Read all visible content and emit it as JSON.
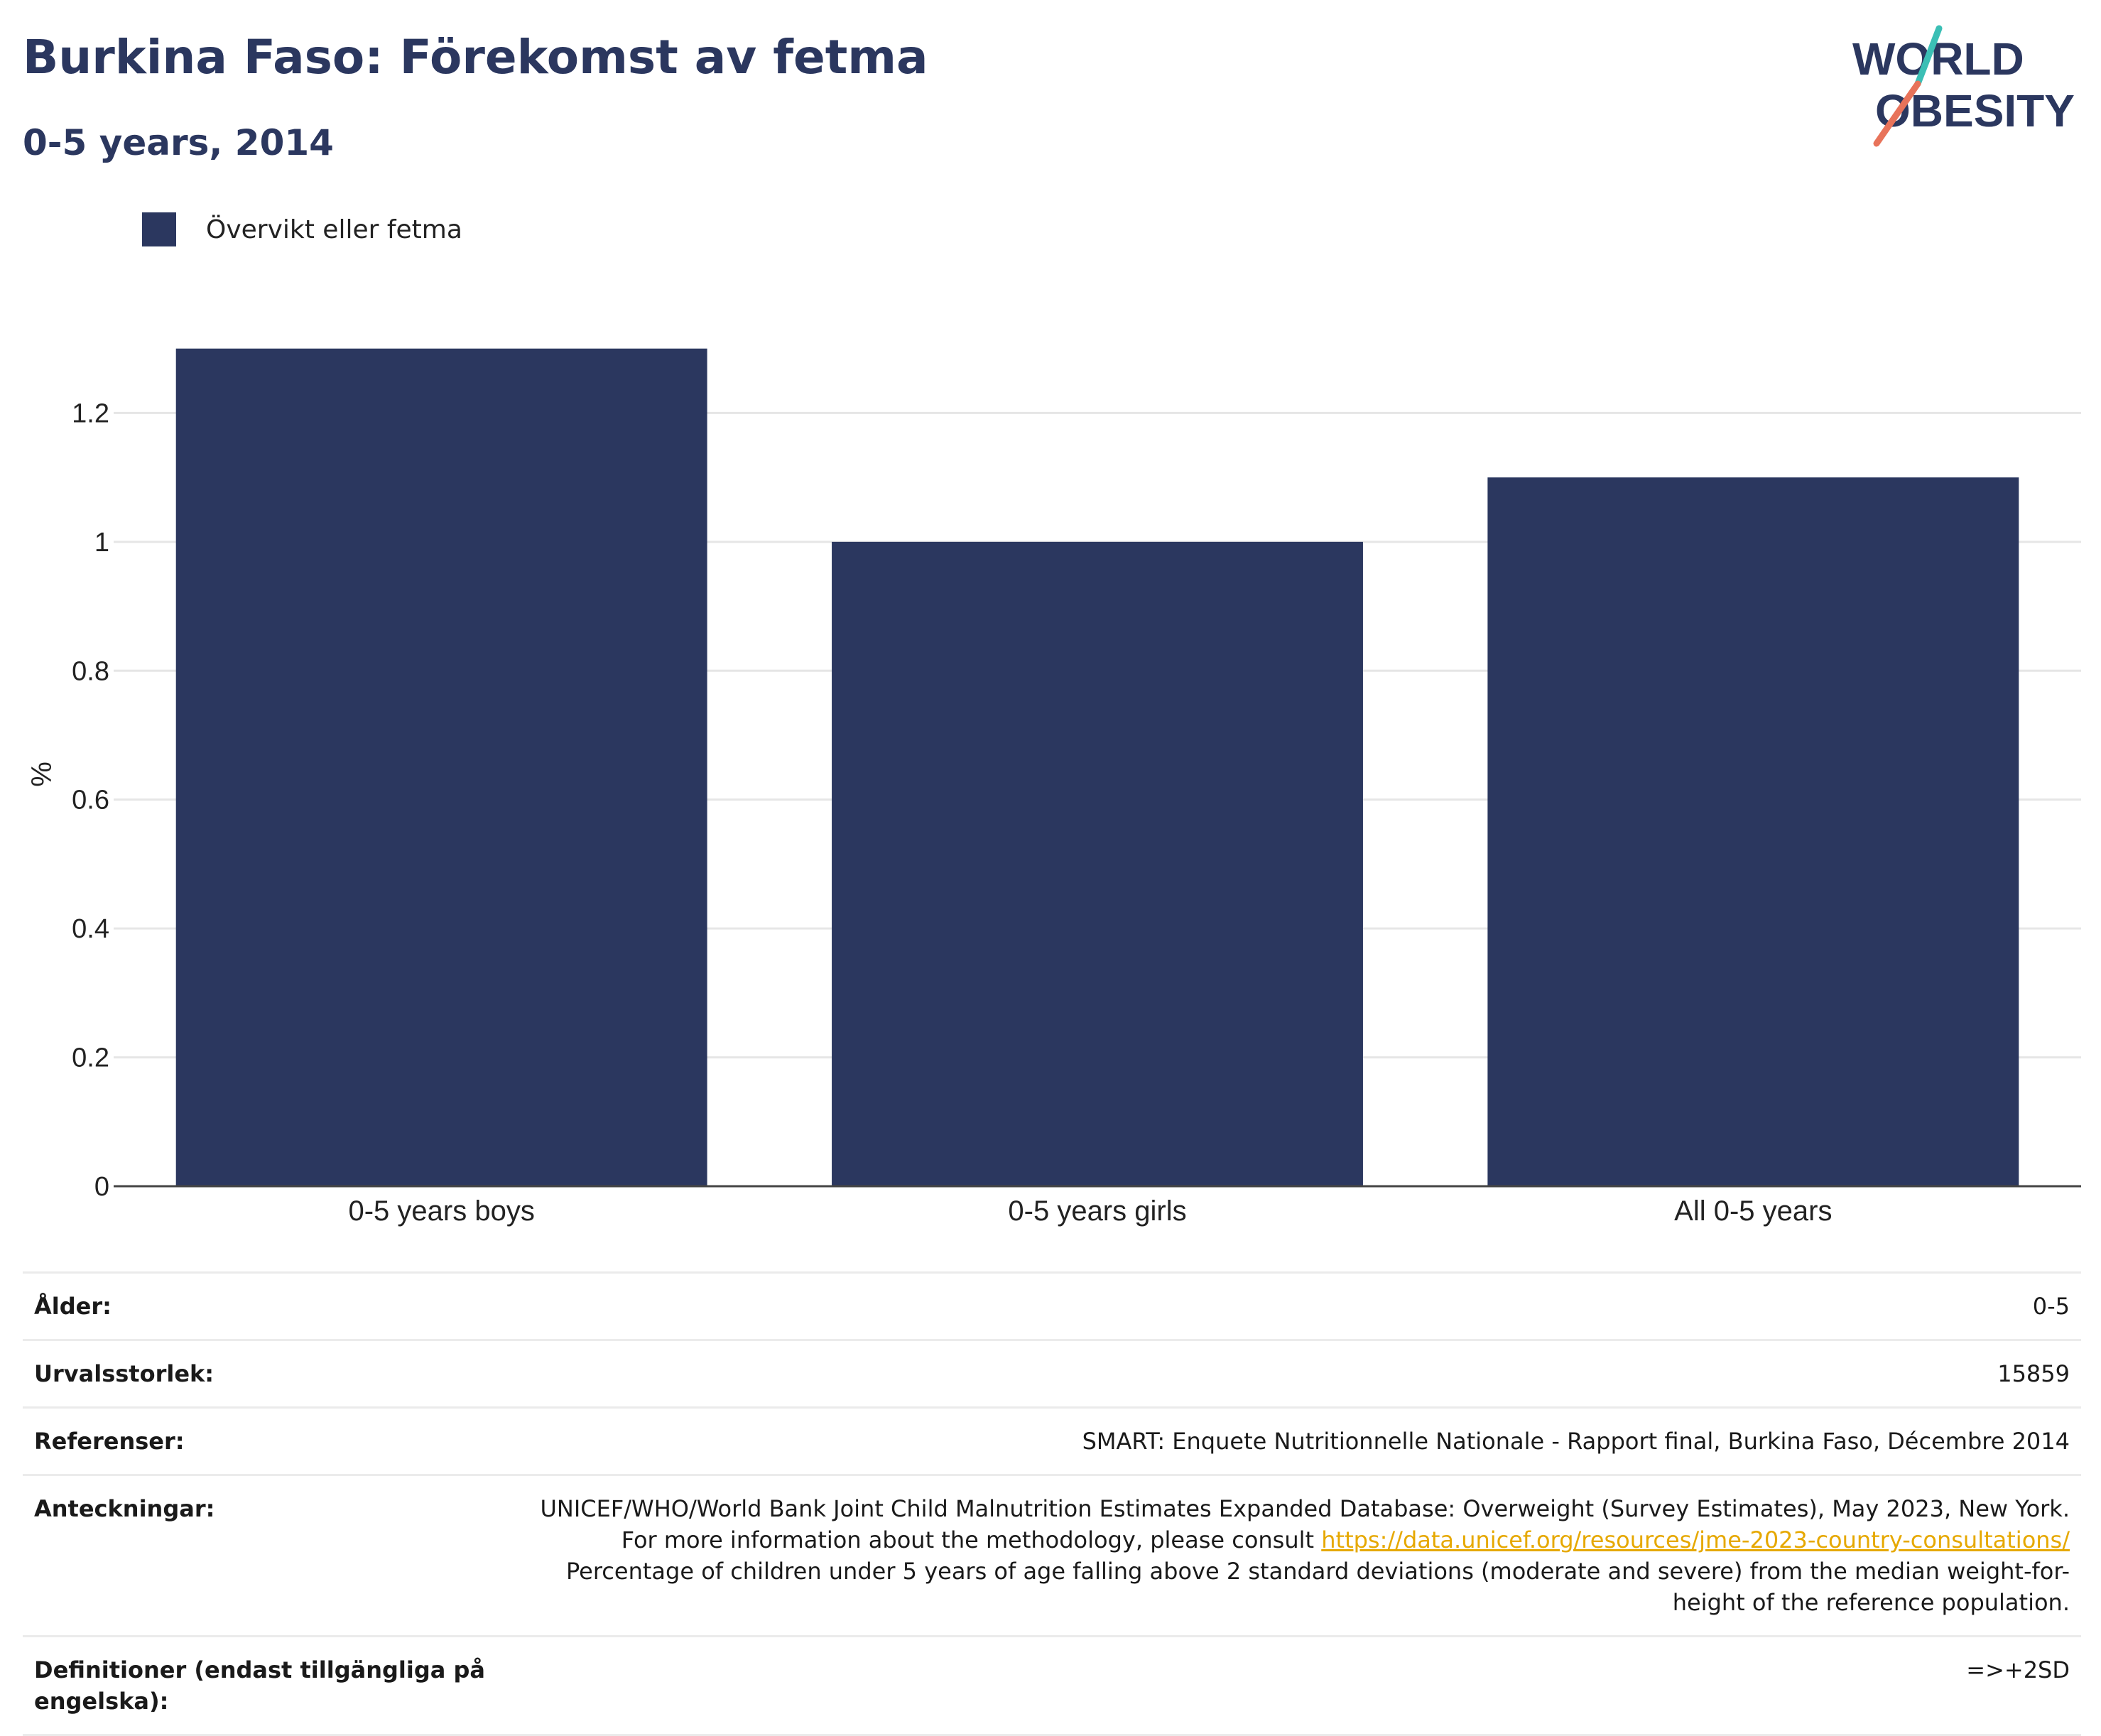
{
  "title": "Burkina Faso: Förekomst av fetma",
  "subtitle": "0-5 years, 2014",
  "logo": {
    "line1": "WORLD",
    "line2": "OBESITY"
  },
  "colors": {
    "bar": "#2b375f",
    "title": "#2b375f",
    "link": "#e6a800",
    "logo_teal": "#3bbfb5",
    "logo_coral": "#e8735a"
  },
  "chart_data": {
    "type": "bar",
    "categories": [
      "0-5 years boys",
      "0-5 years girls",
      "All 0-5 years"
    ],
    "series": [
      {
        "name": "Övervikt eller fetma",
        "values": [
          1.3,
          1.0,
          1.1
        ]
      }
    ],
    "ylabel": "%",
    "xlabel": "",
    "ylim": [
      0,
      1.4
    ],
    "yticks": [
      0,
      0.2,
      0.4,
      0.6,
      0.8,
      1,
      1.2
    ],
    "ytick_labels": [
      "0",
      "0.2",
      "0.4",
      "0.6",
      "0.8",
      "1",
      "1.2"
    ],
    "grid": true,
    "legend_position": "top-left"
  },
  "meta": {
    "age": {
      "label": "Ålder:",
      "value": "0-5"
    },
    "sample_size": {
      "label": "Urvalsstorlek:",
      "value": "15859"
    },
    "references": {
      "label": "Referenser:",
      "value": "SMART: Enquete Nutritionnelle Nationale - Rapport final, Burkina Faso, Décembre 2014"
    },
    "notes": {
      "label": "Anteckningar:",
      "text1": "UNICEF/WHO/World Bank Joint Child Malnutrition Estimates Expanded Database: Overweight (Survey Estimates), May 2023, New York. For more information about the methodology, please consult ",
      "link": "https://data.unicef.org/resources/jme-2023-country-consultations/",
      "text2": "Percentage of children under 5 years of age falling above 2 standard deviations (moderate and severe) from the median weight-for-height of the reference population."
    },
    "definitions": {
      "label": "Definitioner (endast tillgängliga på engelska):",
      "value": "=>+2SD"
    }
  }
}
